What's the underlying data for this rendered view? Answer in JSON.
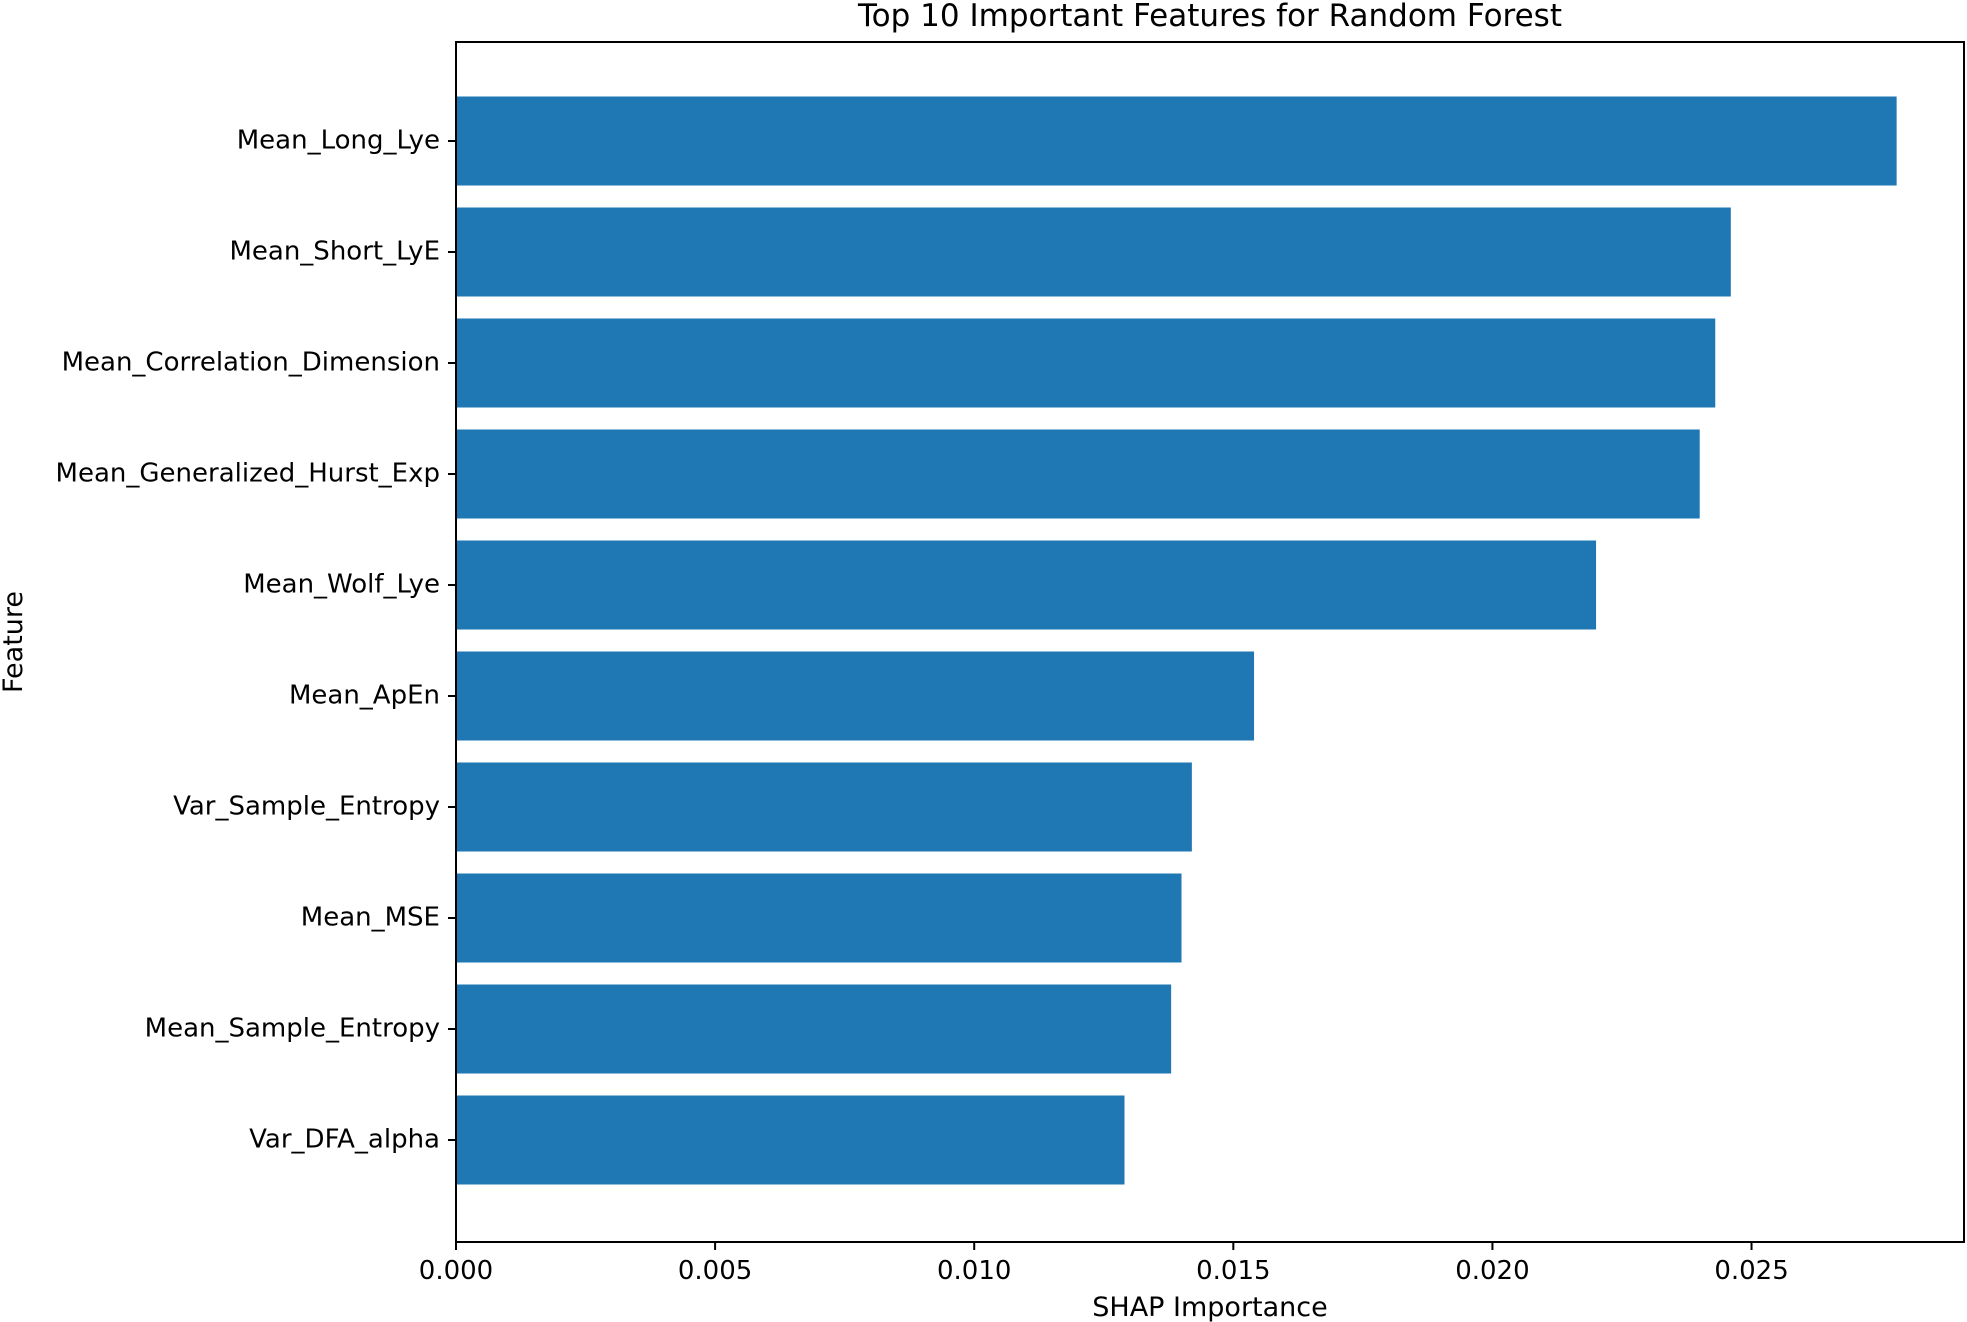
{
  "chart_data": {
    "type": "bar",
    "orientation": "horizontal",
    "title": "Top 10 Important Features for Random Forest",
    "xlabel": "SHAP Importance",
    "ylabel": "Feature",
    "categories": [
      "Mean_Long_Lye",
      "Mean_Short_LyE",
      "Mean_Correlation_Dimension",
      "Mean_Generalized_Hurst_Exp",
      "Mean_Wolf_Lye",
      "Mean_ApEn",
      "Var_Sample_Entropy",
      "Mean_MSE",
      "Mean_Sample_Entropy",
      "Var_DFA_alpha"
    ],
    "values": [
      0.0278,
      0.0246,
      0.0243,
      0.024,
      0.022,
      0.0154,
      0.0142,
      0.014,
      0.0138,
      0.0129
    ],
    "xlim": [
      0,
      0.0291
    ],
    "xticks": [
      0.0,
      0.005,
      0.01,
      0.015,
      0.02,
      0.025
    ],
    "xtick_labels": [
      "0.000",
      "0.005",
      "0.010",
      "0.015",
      "0.020",
      "0.025"
    ],
    "grid": false,
    "bar_color": "#1f77b4"
  }
}
